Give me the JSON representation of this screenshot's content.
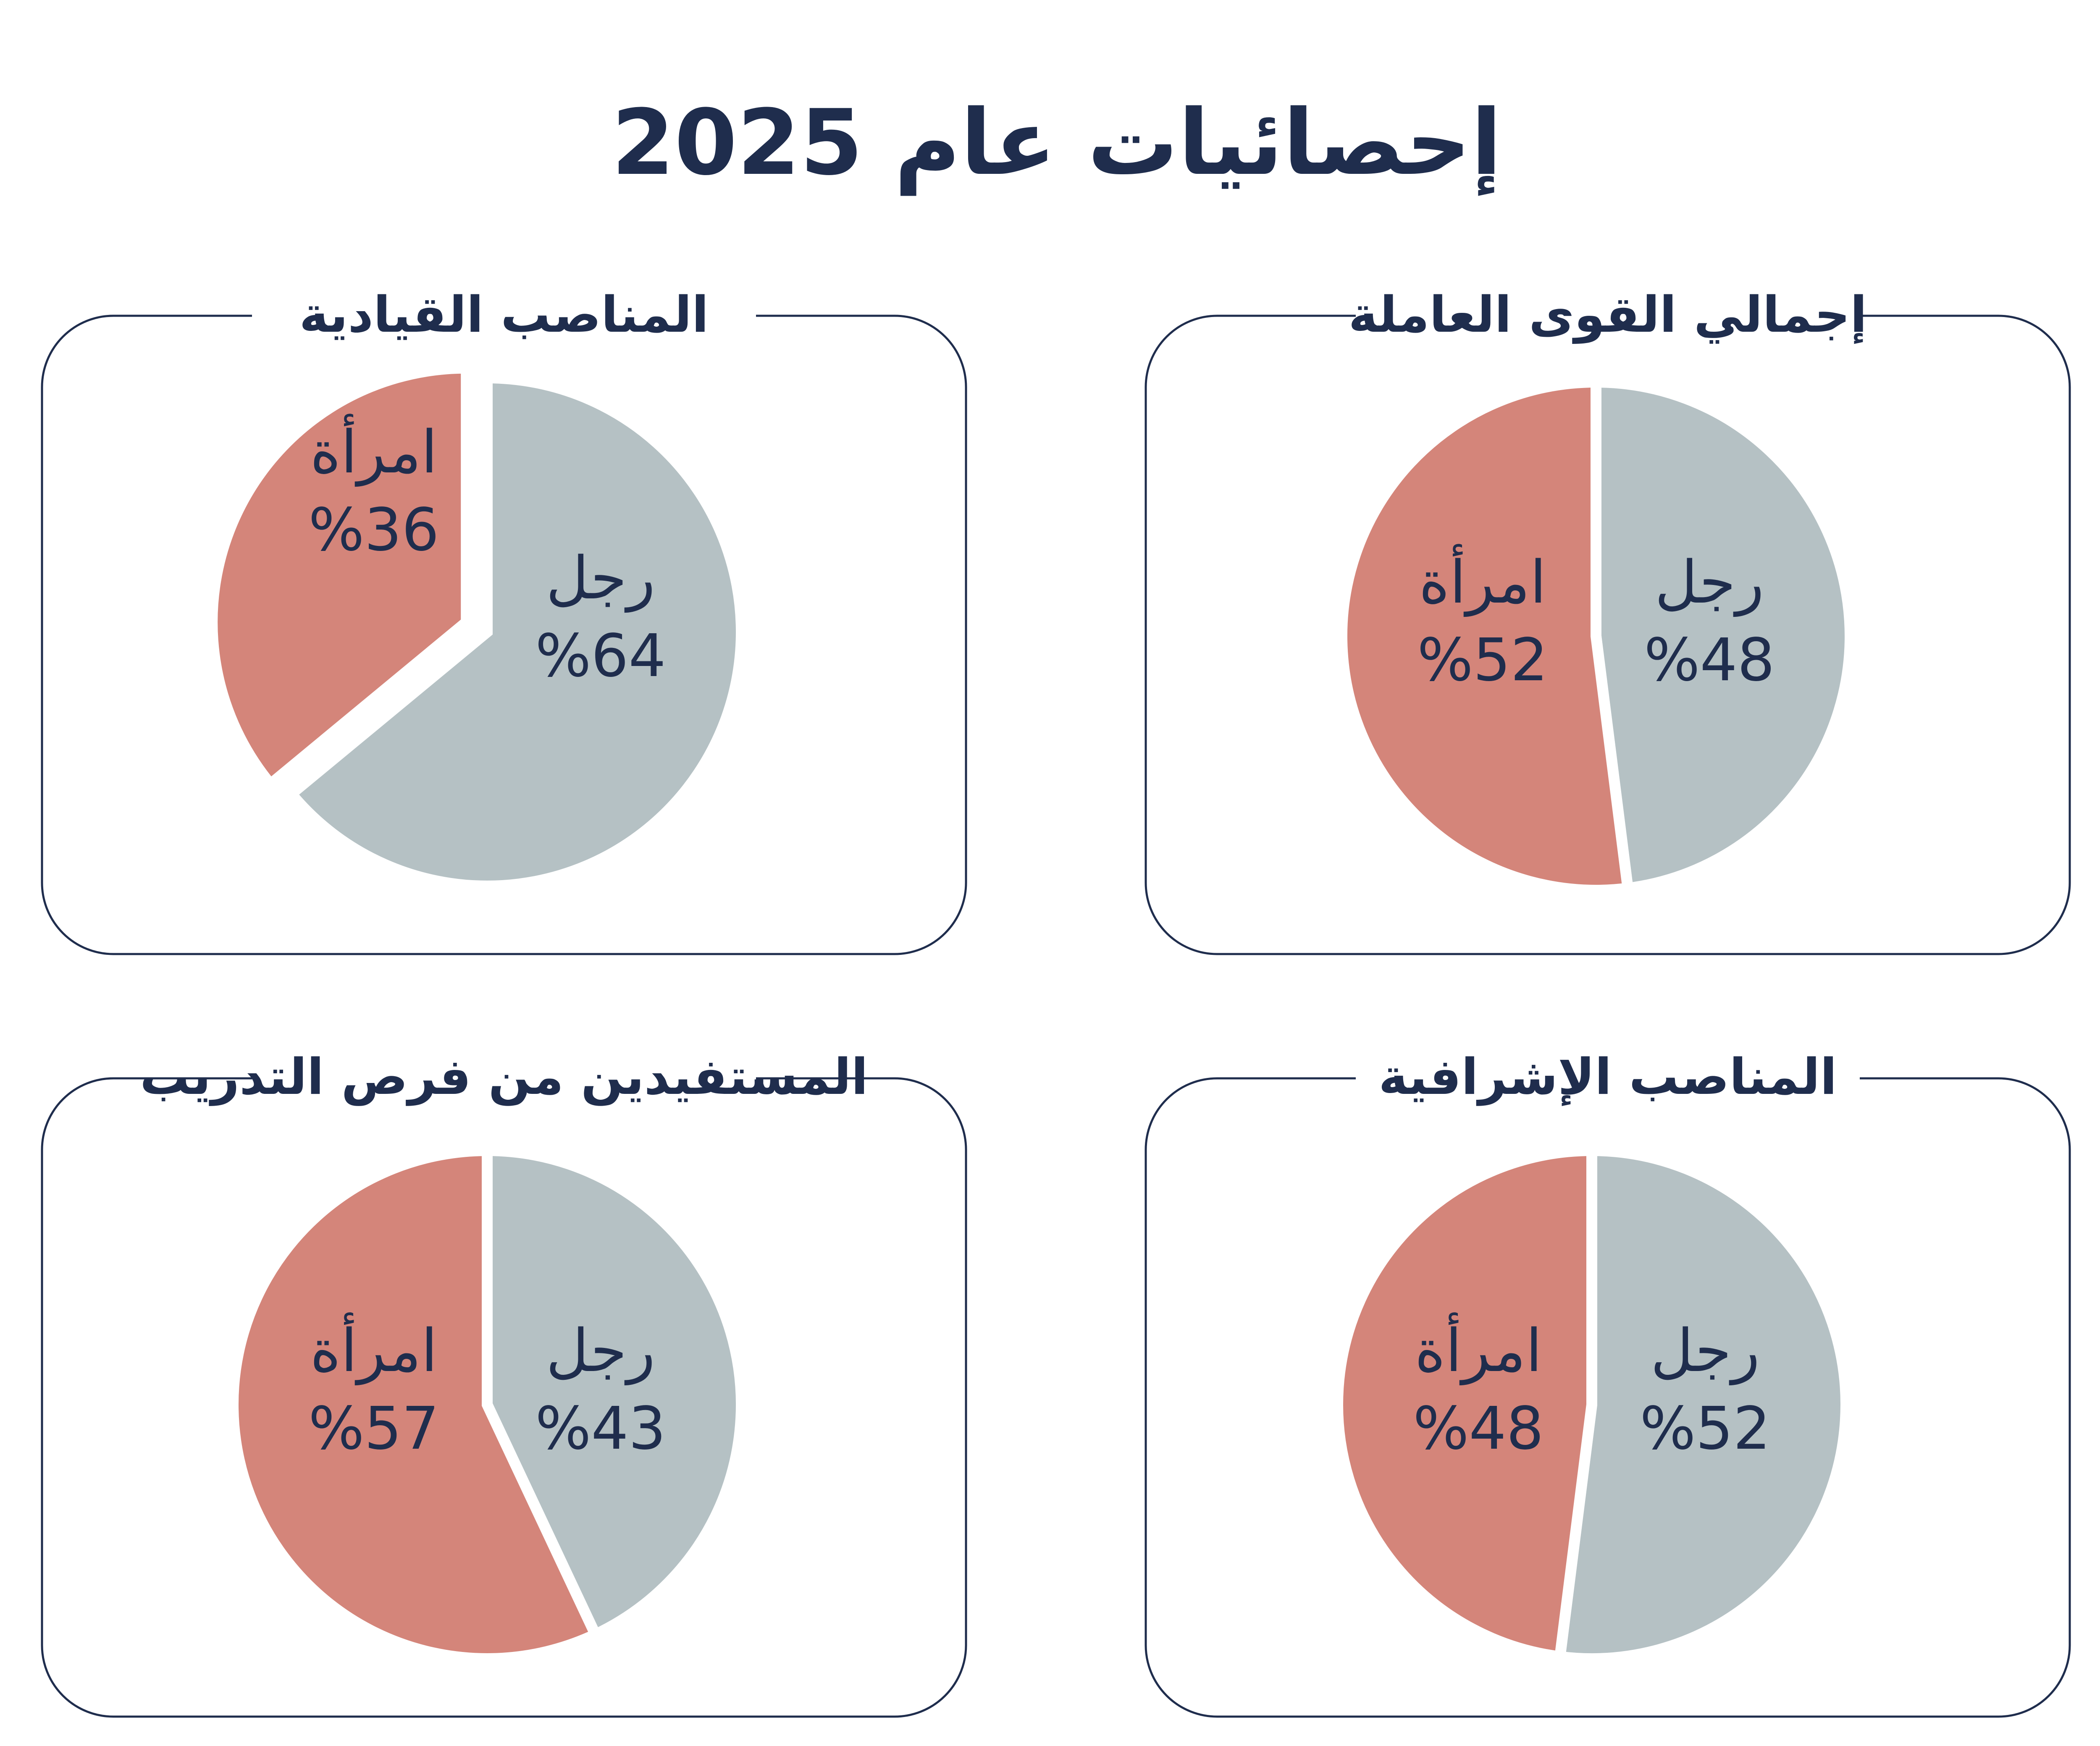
{
  "page": {
    "title": "إحصائيات عام 2025"
  },
  "colors": {
    "men": "#b5c1c4",
    "women": "#d4857a",
    "text": "#1f2d4d",
    "frame": "#1f2d4d"
  },
  "chart_data": [
    {
      "type": "pie",
      "title": "إجمالي القوى العاملة",
      "slices": [
        {
          "label": "رجل",
          "value": 48,
          "display": "%48",
          "color": "#b5c1c4"
        },
        {
          "label": "امرأة",
          "value": 52,
          "display": "%52",
          "color": "#d4857a"
        }
      ]
    },
    {
      "type": "pie",
      "title": "المناصب القيادية",
      "slices": [
        {
          "label": "رجل",
          "value": 64,
          "display": "%64",
          "color": "#b5c1c4"
        },
        {
          "label": "امرأة",
          "value": 36,
          "display": "%36",
          "color": "#d4857a"
        }
      ]
    },
    {
      "type": "pie",
      "title": "المناصب الإشرافية",
      "slices": [
        {
          "label": "رجل",
          "value": 52,
          "display": "%52",
          "color": "#b5c1c4"
        },
        {
          "label": "امرأة",
          "value": 48,
          "display": "%48",
          "color": "#d4857a"
        }
      ]
    },
    {
      "type": "pie",
      "title": "المستفيدين من فرص التدريب",
      "slices": [
        {
          "label": "رجل",
          "value": 43,
          "display": "%43",
          "color": "#b5c1c4"
        },
        {
          "label": "امرأة",
          "value": 57,
          "display": "%57",
          "color": "#d4857a"
        }
      ]
    }
  ]
}
